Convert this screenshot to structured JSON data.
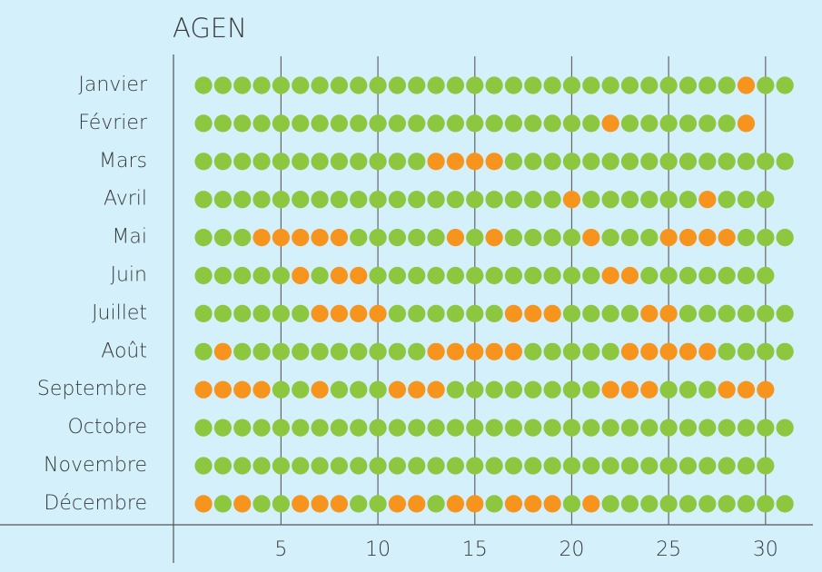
{
  "chart_data": {
    "type": "dot-matrix",
    "title": "AGEN",
    "categories": [
      "Janvier",
      "Février",
      "Mars",
      "Avril",
      "Mai",
      "Juin",
      "Juillet",
      "Août",
      "Septembre",
      "Octobre",
      "Novembre",
      "Décembre"
    ],
    "values": [
      [
        0,
        0,
        0,
        0,
        0,
        0,
        0,
        0,
        0,
        0,
        0,
        0,
        0,
        0,
        0,
        0,
        0,
        0,
        0,
        0,
        0,
        0,
        0,
        0,
        0,
        0,
        0,
        0,
        1,
        0,
        0
      ],
      [
        0,
        0,
        0,
        0,
        0,
        0,
        0,
        0,
        0,
        0,
        0,
        0,
        0,
        0,
        0,
        0,
        0,
        0,
        0,
        0,
        0,
        1,
        0,
        0,
        0,
        0,
        0,
        0,
        1
      ],
      [
        0,
        0,
        0,
        0,
        0,
        0,
        0,
        0,
        0,
        0,
        0,
        0,
        1,
        1,
        1,
        1,
        0,
        0,
        0,
        0,
        0,
        0,
        0,
        0,
        0,
        0,
        0,
        0,
        0,
        0,
        0
      ],
      [
        0,
        0,
        0,
        0,
        0,
        0,
        0,
        0,
        0,
        0,
        0,
        0,
        0,
        0,
        0,
        0,
        0,
        0,
        0,
        1,
        0,
        0,
        0,
        0,
        0,
        0,
        1,
        0,
        0,
        0
      ],
      [
        0,
        0,
        0,
        1,
        1,
        1,
        1,
        1,
        0,
        0,
        0,
        0,
        0,
        1,
        0,
        1,
        0,
        0,
        0,
        0,
        1,
        0,
        0,
        0,
        1,
        1,
        1,
        1,
        0,
        0,
        0
      ],
      [
        0,
        0,
        0,
        0,
        0,
        1,
        0,
        1,
        1,
        0,
        0,
        0,
        0,
        0,
        0,
        0,
        0,
        0,
        0,
        0,
        0,
        1,
        1,
        0,
        0,
        0,
        0,
        0,
        0,
        0
      ],
      [
        0,
        0,
        0,
        0,
        0,
        0,
        1,
        1,
        1,
        1,
        0,
        0,
        0,
        0,
        0,
        0,
        1,
        1,
        1,
        0,
        0,
        0,
        0,
        1,
        1,
        0,
        0,
        0,
        0,
        0,
        0
      ],
      [
        0,
        1,
        0,
        0,
        0,
        0,
        0,
        0,
        0,
        0,
        0,
        0,
        1,
        1,
        1,
        1,
        1,
        0,
        0,
        0,
        0,
        0,
        1,
        1,
        1,
        1,
        1,
        0,
        0,
        0,
        0
      ],
      [
        1,
        1,
        1,
        1,
        0,
        0,
        1,
        0,
        0,
        0,
        1,
        1,
        1,
        0,
        0,
        0,
        0,
        0,
        0,
        0,
        0,
        1,
        1,
        1,
        0,
        0,
        0,
        1,
        1,
        1
      ],
      [
        0,
        0,
        0,
        0,
        0,
        0,
        0,
        0,
        0,
        0,
        0,
        0,
        0,
        0,
        0,
        0,
        0,
        0,
        0,
        0,
        0,
        0,
        0,
        0,
        0,
        0,
        0,
        0,
        0,
        0,
        0
      ],
      [
        0,
        0,
        0,
        0,
        0,
        0,
        0,
        0,
        0,
        0,
        0,
        0,
        0,
        0,
        0,
        0,
        0,
        0,
        0,
        0,
        0,
        0,
        0,
        0,
        0,
        0,
        0,
        0,
        0,
        0
      ],
      [
        1,
        0,
        1,
        0,
        0,
        1,
        1,
        1,
        0,
        0,
        1,
        1,
        0,
        1,
        1,
        0,
        1,
        1,
        1,
        0,
        1,
        0,
        0,
        0,
        0,
        0,
        0,
        0,
        0,
        0,
        0
      ]
    ],
    "colors": [
      "#8dc63f",
      "#f7941d"
    ],
    "xlim": [
      0,
      32
    ],
    "xticks": [
      5,
      10,
      15,
      20,
      25,
      30
    ],
    "grid": true
  }
}
